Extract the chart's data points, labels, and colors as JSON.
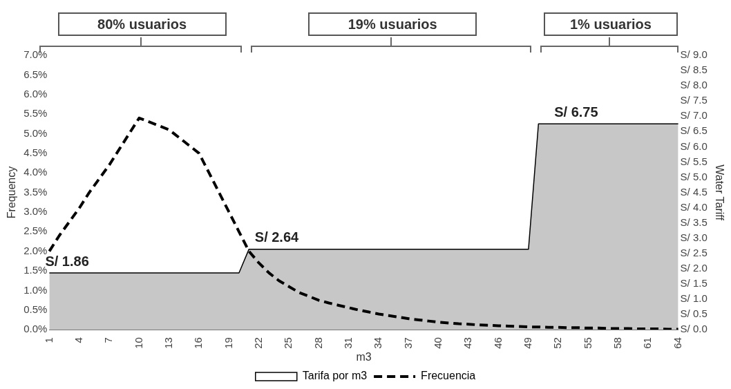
{
  "chart_data": {
    "type": "line",
    "xlabel": "m3",
    "ylabel": "Frequency",
    "y2label": "Water Tariff",
    "categories": [
      "1",
      null,
      null,
      "4",
      null,
      null,
      "7",
      null,
      null,
      "10",
      null,
      null,
      "13",
      null,
      null,
      "16",
      null,
      null,
      "19",
      null,
      null,
      "22",
      null,
      null,
      "25",
      null,
      null,
      "28",
      null,
      null,
      "31",
      null,
      null,
      "34",
      null,
      null,
      "37",
      null,
      null,
      "40",
      null,
      null,
      "43",
      null,
      null,
      "46",
      null,
      null,
      "49",
      null,
      null,
      "52",
      null,
      null,
      "55",
      null,
      null,
      "58",
      null,
      null,
      "61",
      null,
      null,
      "64"
    ],
    "series": [
      {
        "name": "Tarifa por m3",
        "type": "area",
        "axis": "y2",
        "color": "#000000",
        "values": [
          1.86,
          1.86,
          1.86,
          1.86,
          1.86,
          1.86,
          1.86,
          1.86,
          1.86,
          1.86,
          1.86,
          1.86,
          1.86,
          1.86,
          1.86,
          1.86,
          1.86,
          1.86,
          1.86,
          1.86,
          2.64,
          2.64,
          2.64,
          2.64,
          2.64,
          2.64,
          2.64,
          2.64,
          2.64,
          2.64,
          2.64,
          2.64,
          2.64,
          2.64,
          2.64,
          2.64,
          2.64,
          2.64,
          2.64,
          2.64,
          2.64,
          2.64,
          2.64,
          2.64,
          2.64,
          2.64,
          2.64,
          2.64,
          2.64,
          6.75,
          6.75,
          6.75,
          6.75,
          6.75,
          6.75,
          6.75,
          6.75,
          6.75,
          6.75,
          6.75,
          6.75,
          6.75,
          6.75,
          6.75
        ],
        "value_labels": [
          "S/ 1.86",
          null,
          null,
          null,
          null,
          null,
          null,
          null,
          null,
          null,
          null,
          null,
          null,
          null,
          null,
          null,
          null,
          null,
          null,
          null,
          null,
          "S/ 2.64",
          null,
          null,
          null,
          null,
          null,
          null,
          null,
          null,
          null,
          null,
          null,
          null,
          null,
          null,
          null,
          null,
          null,
          null,
          null,
          null,
          null,
          null,
          null,
          null,
          null,
          null,
          null,
          null,
          null,
          "S/ 6.75",
          null,
          null,
          null,
          null,
          null,
          null,
          null,
          null,
          null,
          null,
          null,
          null
        ]
      },
      {
        "name": "Frecuencia",
        "type": "line",
        "line_style": "dashed",
        "color": "#000000",
        "values": [
          2.0,
          2.4,
          2.75,
          3.1,
          3.5,
          3.85,
          4.2,
          4.6,
          5.0,
          5.4,
          5.3,
          5.2,
          5.1,
          4.9,
          4.7,
          4.5,
          4.0,
          3.5,
          3.0,
          2.5,
          2.0,
          1.7,
          1.45,
          1.25,
          1.1,
          0.95,
          0.85,
          0.75,
          0.68,
          0.62,
          0.56,
          0.5,
          0.45,
          0.4,
          0.36,
          0.32,
          0.28,
          0.25,
          0.22,
          0.19,
          0.17,
          0.15,
          0.14,
          0.12,
          0.11,
          0.1,
          0.09,
          0.08,
          0.07,
          0.07,
          0.06,
          0.06,
          0.05,
          0.05,
          0.04,
          0.04,
          0.03,
          0.03,
          0.03,
          0.02,
          0.02,
          0.02,
          0.01,
          0.01
        ]
      }
    ],
    "ylim": [
      0,
      7
    ],
    "yticks": [
      {
        "value": 0,
        "label": "0.0%"
      },
      {
        "value": 0.5,
        "label": "0.5%"
      },
      {
        "value": 1,
        "label": "1.0%"
      },
      {
        "value": 1.5,
        "label": "1.5%"
      },
      {
        "value": 2,
        "label": "2.0%"
      },
      {
        "value": 2.5,
        "label": "2.5%"
      },
      {
        "value": 3,
        "label": "3.0%"
      },
      {
        "value": 3.5,
        "label": "3.5%"
      },
      {
        "value": 4,
        "label": "4.0%"
      },
      {
        "value": 4.5,
        "label": "4.5%"
      },
      {
        "value": 5,
        "label": "5.0%"
      },
      {
        "value": 5.5,
        "label": "5.5%"
      },
      {
        "value": 6,
        "label": "6.0%"
      },
      {
        "value": 6.5,
        "label": "6.5%"
      },
      {
        "value": 7,
        "label": "7.0%"
      }
    ],
    "y2lim": [
      0,
      9
    ],
    "y2ticks": [
      {
        "value": 0,
        "label": "S/ 0.0"
      },
      {
        "value": 0.5,
        "label": "S/ 0.5"
      },
      {
        "value": 1,
        "label": "S/ 1.0"
      },
      {
        "value": 1.5,
        "label": "S/ 1.5"
      },
      {
        "value": 2,
        "label": "S/ 2.0"
      },
      {
        "value": 2.5,
        "label": "S/ 2.5"
      },
      {
        "value": 3,
        "label": "S/ 3.0"
      },
      {
        "value": 3.5,
        "label": "S/ 3.5"
      },
      {
        "value": 4,
        "label": "S/ 4.0"
      },
      {
        "value": 4.5,
        "label": "S/ 4.5"
      },
      {
        "value": 5,
        "label": "S/ 5.0"
      },
      {
        "value": 5.5,
        "label": "S/ 5.5"
      },
      {
        "value": 6,
        "label": "S/ 6.0"
      },
      {
        "value": 6.5,
        "label": "S/ 6.5"
      },
      {
        "value": 7,
        "label": "S/ 7.0"
      },
      {
        "value": 7.5,
        "label": "S/ 7.5"
      },
      {
        "value": 8,
        "label": "S/ 8.0"
      },
      {
        "value": 8.5,
        "label": "S/ 8.5"
      },
      {
        "value": 9,
        "label": "S/ 9.0"
      }
    ],
    "annotations": [
      "80% usuarios",
      "19% usuarios",
      "1% usuarios"
    ],
    "grid": false,
    "legend": "bottom",
    "marker": "none"
  }
}
